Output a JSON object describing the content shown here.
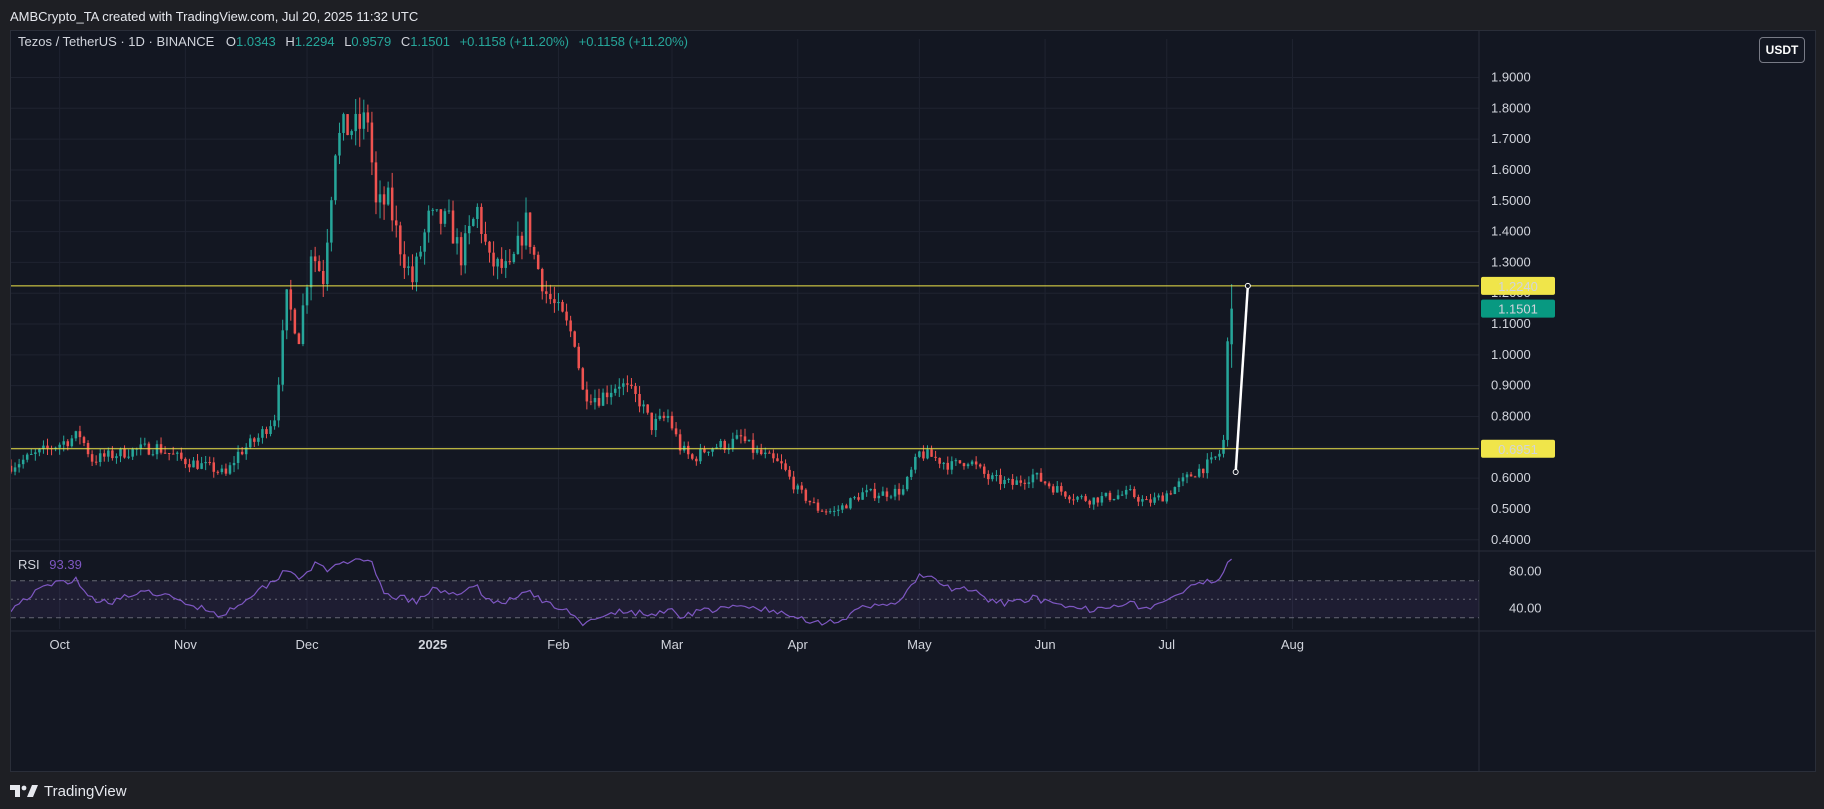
{
  "caption": "AMBCrypto_TA created with TradingView.com, Jul 20, 2025 11:32 UTC",
  "header": {
    "symbol": "Tezos / TetherUS · 1D · BINANCE",
    "o_label": "O",
    "o_value": "1.0343",
    "h_label": "H",
    "h_value": "1.2294",
    "l_label": "L",
    "l_value": "0.9579",
    "c_label": "C",
    "c_value": "1.1501",
    "change": "+0.1158 (+11.20%)",
    "change2": "+0.1158 (+11.20%)"
  },
  "currency_button": "USDT",
  "rsi_label": "RSI",
  "rsi_value": "93.39",
  "footer_brand": "TradingView",
  "colors": {
    "up": "#26a69a",
    "down": "#ef5350",
    "level": "#f0e54a",
    "rsi": "#7e57c2",
    "badge_last": "#089981",
    "trendline": "#ffffff"
  },
  "chart_data": {
    "type": "candlestick",
    "price_axis": {
      "ticks": [
        "1.9000",
        "1.8000",
        "1.7000",
        "1.6000",
        "1.5000",
        "1.4000",
        "1.3000",
        "1.2000",
        "1.1000",
        "1.0000",
        "0.9000",
        "0.8000",
        "0.7000",
        "0.6000",
        "0.5000",
        "0.4000"
      ],
      "tick_values": [
        1.9,
        1.8,
        1.7,
        1.6,
        1.5,
        1.4,
        1.3,
        1.2,
        1.1,
        1.0,
        0.9,
        0.8,
        0.7,
        0.6,
        0.5,
        0.4
      ],
      "range": [
        0.37,
        1.96
      ]
    },
    "time_axis": {
      "labels": [
        "Oct",
        "Nov",
        "Dec",
        "2025",
        "Feb",
        "Mar",
        "Apr",
        "May",
        "Jun",
        "Jul",
        "Aug"
      ],
      "label_days": [
        12,
        43,
        73,
        104,
        135,
        163,
        194,
        224,
        255,
        285,
        316
      ],
      "range_days": [
        0,
        362
      ]
    },
    "levels": [
      {
        "label": "1.2240",
        "value": 1.224
      },
      {
        "label": "0.6951",
        "value": 0.6951
      }
    ],
    "last_price": {
      "label": "1.1501",
      "value": 1.1501
    },
    "trendline": {
      "from": {
        "day": 302,
        "price": 0.62
      },
      "to": {
        "day": 305,
        "price": 1.224
      }
    },
    "close_anchors": [
      [
        0,
        0.64
      ],
      [
        10,
        0.7
      ],
      [
        17,
        0.74
      ],
      [
        20,
        0.66
      ],
      [
        30,
        0.69
      ],
      [
        36,
        0.7
      ],
      [
        42,
        0.66
      ],
      [
        50,
        0.63
      ],
      [
        53,
        0.61
      ],
      [
        56,
        0.68
      ],
      [
        61,
        0.73
      ],
      [
        65,
        0.8
      ],
      [
        68,
        1.18
      ],
      [
        71,
        1.06
      ],
      [
        74,
        1.34
      ],
      [
        77,
        1.25
      ],
      [
        80,
        1.68
      ],
      [
        82,
        1.73
      ],
      [
        86,
        1.74
      ],
      [
        88,
        1.77
      ],
      [
        90,
        1.48
      ],
      [
        93,
        1.5
      ],
      [
        96,
        1.35
      ],
      [
        99,
        1.24
      ],
      [
        103,
        1.44
      ],
      [
        108,
        1.43
      ],
      [
        111,
        1.32
      ],
      [
        115,
        1.47
      ],
      [
        118,
        1.3
      ],
      [
        123,
        1.27
      ],
      [
        127,
        1.43
      ],
      [
        129,
        1.32
      ],
      [
        132,
        1.2
      ],
      [
        136,
        1.12
      ],
      [
        139,
        1.05
      ],
      [
        141,
        0.88
      ],
      [
        145,
        0.86
      ],
      [
        150,
        0.91
      ],
      [
        155,
        0.85
      ],
      [
        158,
        0.77
      ],
      [
        162,
        0.8
      ],
      [
        165,
        0.7
      ],
      [
        168,
        0.66
      ],
      [
        172,
        0.7
      ],
      [
        177,
        0.71
      ],
      [
        180,
        0.73
      ],
      [
        183,
        0.69
      ],
      [
        186,
        0.67
      ],
      [
        190,
        0.64
      ],
      [
        194,
        0.56
      ],
      [
        199,
        0.5
      ],
      [
        203,
        0.49
      ],
      [
        210,
        0.55
      ],
      [
        215,
        0.55
      ],
      [
        220,
        0.56
      ],
      [
        224,
        0.68
      ],
      [
        227,
        0.67
      ],
      [
        232,
        0.64
      ],
      [
        236,
        0.66
      ],
      [
        241,
        0.6
      ],
      [
        247,
        0.58
      ],
      [
        252,
        0.61
      ],
      [
        257,
        0.57
      ],
      [
        262,
        0.54
      ],
      [
        266,
        0.53
      ],
      [
        271,
        0.54
      ],
      [
        276,
        0.55
      ],
      [
        280,
        0.52
      ],
      [
        284,
        0.54
      ],
      [
        288,
        0.58
      ],
      [
        292,
        0.62
      ],
      [
        296,
        0.65
      ],
      [
        298,
        0.68
      ],
      [
        299,
        0.72
      ],
      [
        300,
        1.03
      ],
      [
        301,
        1.15
      ]
    ],
    "rsi": {
      "label": "RSI",
      "value": 93.39,
      "bands": [
        70,
        50,
        30
      ],
      "axis_ticks": [
        "80.00",
        "40.00"
      ],
      "axis_tick_values": [
        80,
        40
      ],
      "range": [
        20,
        100
      ],
      "anchors": [
        [
          0,
          40
        ],
        [
          5,
          55
        ],
        [
          10,
          66
        ],
        [
          16,
          72
        ],
        [
          20,
          50
        ],
        [
          25,
          48
        ],
        [
          30,
          55
        ],
        [
          36,
          57
        ],
        [
          42,
          47
        ],
        [
          48,
          40
        ],
        [
          52,
          32
        ],
        [
          56,
          45
        ],
        [
          61,
          60
        ],
        [
          65,
          70
        ],
        [
          68,
          84
        ],
        [
          71,
          73
        ],
        [
          75,
          88
        ],
        [
          78,
          80
        ],
        [
          82,
          92
        ],
        [
          86,
          90
        ],
        [
          89,
          88
        ],
        [
          92,
          55
        ],
        [
          96,
          52
        ],
        [
          100,
          47
        ],
        [
          104,
          60
        ],
        [
          110,
          57
        ],
        [
          115,
          62
        ],
        [
          119,
          46
        ],
        [
          124,
          50
        ],
        [
          128,
          60
        ],
        [
          131,
          47
        ],
        [
          135,
          40
        ],
        [
          139,
          35
        ],
        [
          141,
          24
        ],
        [
          145,
          28
        ],
        [
          150,
          37
        ],
        [
          155,
          35
        ],
        [
          158,
          32
        ],
        [
          162,
          40
        ],
        [
          165,
          32
        ],
        [
          170,
          38
        ],
        [
          175,
          39
        ],
        [
          180,
          42
        ],
        [
          185,
          40
        ],
        [
          190,
          34
        ],
        [
          194,
          30
        ],
        [
          200,
          25
        ],
        [
          205,
          28
        ],
        [
          210,
          40
        ],
        [
          215,
          44
        ],
        [
          220,
          50
        ],
        [
          224,
          77
        ],
        [
          228,
          70
        ],
        [
          232,
          60
        ],
        [
          236,
          62
        ],
        [
          241,
          48
        ],
        [
          247,
          45
        ],
        [
          252,
          53
        ],
        [
          257,
          43
        ],
        [
          262,
          40
        ],
        [
          266,
          39
        ],
        [
          271,
          44
        ],
        [
          276,
          46
        ],
        [
          280,
          40
        ],
        [
          284,
          46
        ],
        [
          288,
          56
        ],
        [
          292,
          64
        ],
        [
          296,
          70
        ],
        [
          298,
          74
        ],
        [
          300,
          90
        ],
        [
          301,
          93.39
        ]
      ]
    }
  }
}
